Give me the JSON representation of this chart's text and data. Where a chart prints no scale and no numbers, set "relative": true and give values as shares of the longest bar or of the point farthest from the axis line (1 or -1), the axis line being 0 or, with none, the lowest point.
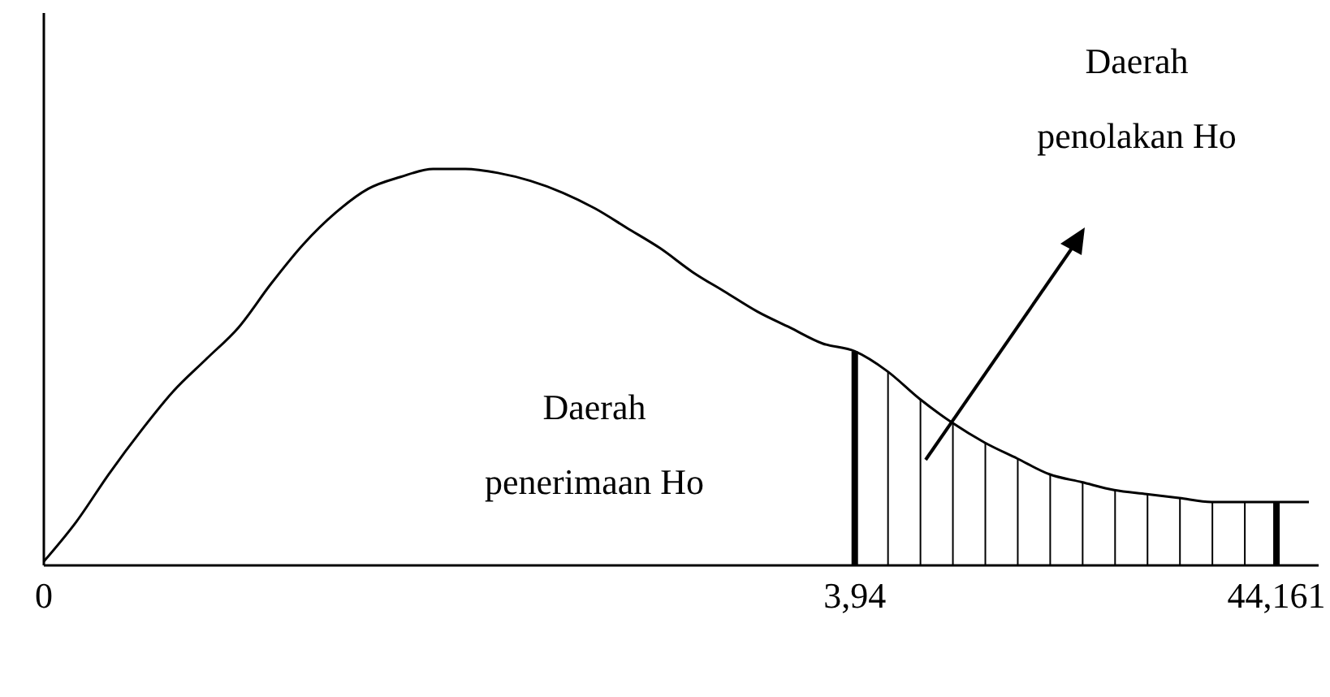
{
  "chart_data": {
    "type": "line",
    "relative": true,
    "color": "#000000",
    "categories": [
      "0",
      null,
      null,
      null,
      null,
      null,
      null,
      null,
      null,
      null,
      null,
      null,
      null,
      null,
      null,
      null,
      null,
      null,
      null,
      null,
      null,
      null,
      null,
      null,
      null,
      "3,94",
      null,
      null,
      null,
      null,
      null,
      null,
      null,
      null,
      null,
      null,
      null,
      null,
      "44,161",
      null
    ],
    "values": [
      0.01,
      0.11,
      0.23,
      0.34,
      0.44,
      0.52,
      0.6,
      0.71,
      0.81,
      0.89,
      0.95,
      0.98,
      1,
      1,
      0.99,
      0.97,
      0.94,
      0.9,
      0.85,
      0.8,
      0.74,
      0.69,
      0.64,
      0.6,
      0.56,
      0.54,
      0.49,
      0.42,
      0.36,
      0.31,
      0.27,
      0.23,
      0.21,
      0.19,
      0.18,
      0.17,
      0.16,
      0.16,
      0.16,
      0.16
    ],
    "ref_lines": [
      {
        "axis": "x",
        "value": "3,94"
      },
      {
        "axis": "x",
        "value": "44,161"
      }
    ],
    "annotations": [
      "Daerah penerimaan Ho",
      "Daerah penolakan Ho"
    ]
  }
}
